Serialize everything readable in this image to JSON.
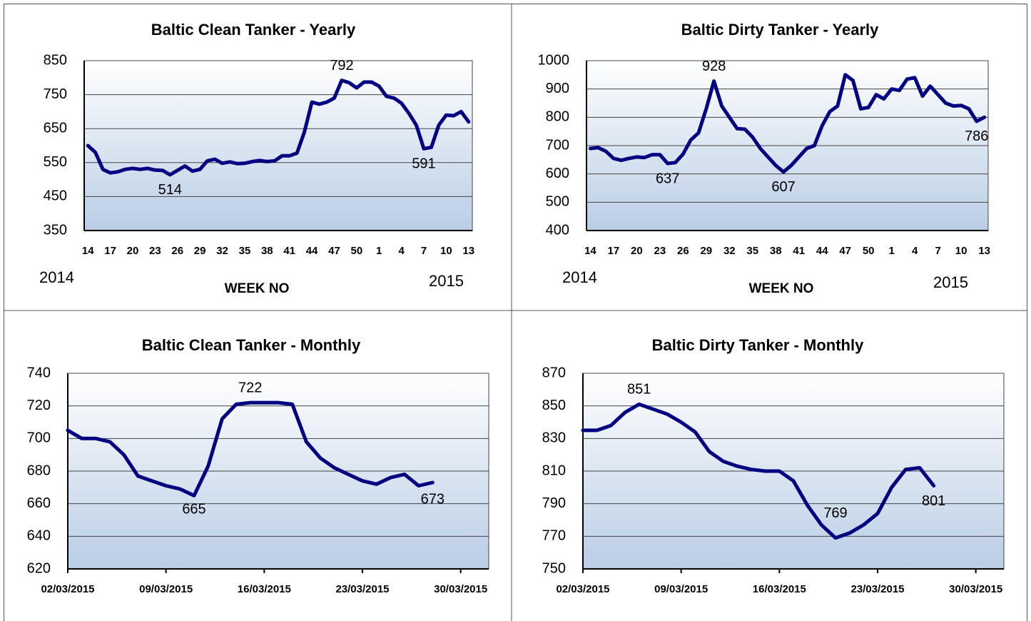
{
  "chart_data": [
    {
      "type": "line",
      "title": "Baltic Clean Tanker - Yearly",
      "x_label": "WEEK NO",
      "annotations": [
        "2014",
        "2015"
      ],
      "categories": [
        "14",
        null,
        null,
        "17",
        null,
        null,
        "20",
        null,
        null,
        "23",
        null,
        null,
        "26",
        null,
        null,
        "29",
        null,
        null,
        "32",
        null,
        null,
        "35",
        null,
        null,
        "38",
        null,
        null,
        "41",
        null,
        null,
        "44",
        null,
        null,
        "47",
        null,
        null,
        "50",
        null,
        null,
        "1",
        null,
        null,
        "4",
        null,
        null,
        "7",
        null,
        null,
        "10",
        null,
        null,
        "13"
      ],
      "values": [
        600,
        580,
        530,
        520,
        523,
        530,
        533,
        530,
        533,
        528,
        527,
        514,
        527,
        540,
        525,
        530,
        555,
        560,
        548,
        552,
        547,
        548,
        553,
        556,
        553,
        555,
        570,
        570,
        578,
        640,
        728,
        722,
        728,
        740,
        792,
        785,
        770,
        787,
        787,
        775,
        745,
        740,
        725,
        695,
        660,
        591,
        595,
        660,
        690,
        688,
        700,
        670
      ],
      "value_labels": [
        null,
        null,
        null,
        null,
        null,
        null,
        null,
        null,
        null,
        null,
        null,
        "514",
        null,
        null,
        null,
        null,
        null,
        null,
        null,
        null,
        null,
        null,
        null,
        null,
        null,
        null,
        null,
        null,
        null,
        null,
        null,
        null,
        null,
        null,
        "792",
        null,
        null,
        null,
        null,
        null,
        null,
        null,
        null,
        null,
        null,
        "591",
        null,
        null,
        null,
        null,
        null,
        null
      ],
      "color": "#000080",
      "ylim": [
        350,
        850
      ],
      "yticks": [
        350,
        450,
        550,
        650,
        750,
        850
      ],
      "grid": true
    },
    {
      "type": "line",
      "title": "Baltic Dirty Tanker - Yearly",
      "x_label": "WEEK NO",
      "annotations": [
        "2014",
        "2015"
      ],
      "categories": [
        "14",
        null,
        null,
        "17",
        null,
        null,
        "20",
        null,
        null,
        "23",
        null,
        null,
        "26",
        null,
        null,
        "29",
        null,
        null,
        "32",
        null,
        null,
        "35",
        null,
        null,
        "38",
        null,
        null,
        "41",
        null,
        null,
        "44",
        null,
        null,
        "47",
        null,
        null,
        "50",
        null,
        null,
        "1",
        null,
        null,
        "4",
        null,
        null,
        "7",
        null,
        null,
        "10",
        null,
        null,
        "13"
      ],
      "values": [
        690,
        693,
        680,
        655,
        648,
        655,
        660,
        658,
        668,
        668,
        637,
        640,
        670,
        720,
        745,
        830,
        928,
        840,
        800,
        760,
        758,
        730,
        690,
        660,
        630,
        607,
        630,
        660,
        690,
        700,
        770,
        820,
        840,
        950,
        930,
        830,
        835,
        880,
        865,
        900,
        895,
        935,
        940,
        875,
        910,
        880,
        850,
        840,
        842,
        830,
        786,
        800
      ],
      "value_labels": [
        null,
        null,
        null,
        null,
        null,
        null,
        null,
        null,
        null,
        null,
        "637",
        null,
        null,
        null,
        null,
        null,
        "928",
        null,
        null,
        null,
        null,
        null,
        null,
        null,
        null,
        "607",
        null,
        null,
        null,
        null,
        null,
        null,
        null,
        null,
        null,
        null,
        null,
        null,
        null,
        null,
        null,
        null,
        null,
        null,
        null,
        null,
        null,
        null,
        null,
        null,
        "786",
        null
      ],
      "color": "#000080",
      "ylim": [
        400,
        1000
      ],
      "yticks": [
        400,
        500,
        600,
        700,
        800,
        900,
        1000
      ],
      "grid": true
    },
    {
      "type": "line",
      "title": "Baltic Clean Tanker - Monthly",
      "x": [
        "02/03/2015",
        "03/03/2015",
        "04/03/2015",
        "05/03/2015",
        "06/03/2015",
        "07/03/2015",
        "08/03/2015",
        "09/03/2015",
        "10/03/2015",
        "11/03/2015",
        "12/03/2015",
        "13/03/2015",
        "14/03/2015",
        "15/03/2015",
        "16/03/2015",
        "17/03/2015",
        "18/03/2015",
        "19/03/2015",
        "20/03/2015",
        "21/03/2015",
        "22/03/2015",
        "23/03/2015",
        "24/03/2015",
        "25/03/2015",
        "26/03/2015",
        "27/03/2015",
        "28/03/2015"
      ],
      "values": [
        705,
        700,
        700,
        698,
        690,
        677,
        674,
        671,
        669,
        665,
        683,
        712,
        721,
        722,
        722,
        722,
        721,
        698,
        688,
        682,
        678,
        674,
        672,
        676,
        678,
        671,
        673
      ],
      "value_labels": [
        null,
        null,
        null,
        null,
        null,
        null,
        null,
        null,
        null,
        "665",
        null,
        null,
        null,
        "722",
        null,
        null,
        null,
        null,
        null,
        null,
        null,
        null,
        null,
        null,
        null,
        null,
        "673"
      ],
      "color": "#000080",
      "xlim": [
        "02/03/2015",
        "01/04/2015"
      ],
      "xticks": [
        "02/03/2015",
        "09/03/2015",
        "16/03/2015",
        "23/03/2015",
        "30/03/2015"
      ],
      "ylim": [
        620,
        740
      ],
      "yticks": [
        620,
        640,
        660,
        680,
        700,
        720,
        740
      ],
      "grid": true
    },
    {
      "type": "line",
      "title": "Baltic Dirty Tanker - Monthly",
      "x": [
        "02/03/2015",
        "03/03/2015",
        "04/03/2015",
        "05/03/2015",
        "06/03/2015",
        "07/03/2015",
        "08/03/2015",
        "09/03/2015",
        "10/03/2015",
        "11/03/2015",
        "12/03/2015",
        "13/03/2015",
        "14/03/2015",
        "15/03/2015",
        "16/03/2015",
        "17/03/2015",
        "18/03/2015",
        "19/03/2015",
        "20/03/2015",
        "21/03/2015",
        "22/03/2015",
        "23/03/2015",
        "24/03/2015",
        "25/03/2015",
        "26/03/2015",
        "27/03/2015"
      ],
      "values": [
        835,
        835,
        838,
        846,
        851,
        848,
        845,
        840,
        834,
        822,
        816,
        813,
        811,
        810,
        810,
        804,
        789,
        777,
        769,
        772,
        777,
        784,
        800,
        811,
        812,
        801
      ],
      "value_labels": [
        null,
        null,
        null,
        null,
        "851",
        null,
        null,
        null,
        null,
        null,
        null,
        null,
        null,
        null,
        null,
        null,
        null,
        null,
        "769",
        null,
        null,
        null,
        null,
        null,
        null,
        "801"
      ],
      "color": "#000080",
      "xlim": [
        "02/03/2015",
        "01/04/2015"
      ],
      "xticks": [
        "02/03/2015",
        "09/03/2015",
        "16/03/2015",
        "23/03/2015",
        "30/03/2015"
      ],
      "ylim": [
        750,
        870
      ],
      "yticks": [
        750,
        770,
        790,
        810,
        830,
        850,
        870
      ],
      "grid": true
    }
  ]
}
